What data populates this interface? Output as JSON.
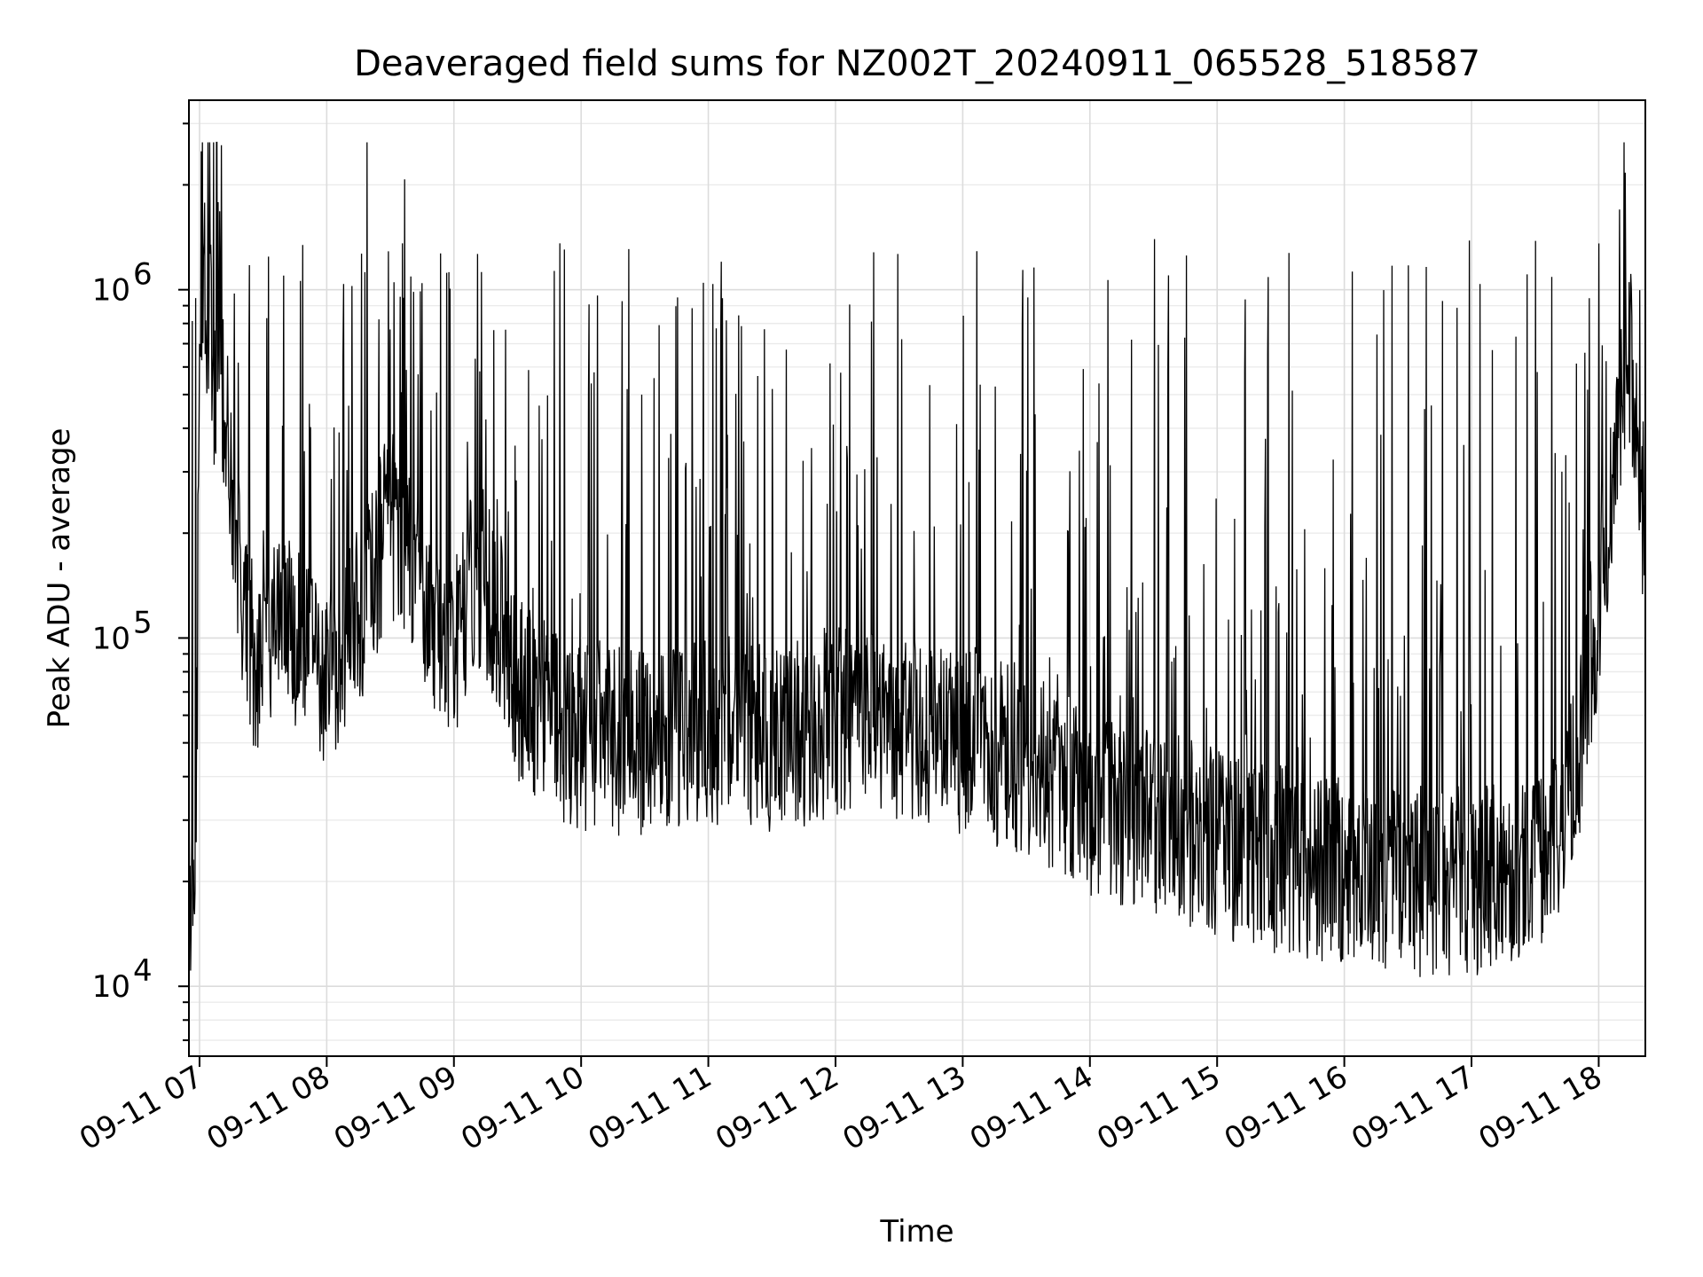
{
  "chart_data": {
    "type": "line",
    "title": "Deaveraged field sums for NZ002T_20240911_065528_518587",
    "xlabel": "Time",
    "ylabel": "Peak ADU - average",
    "yscale": "log",
    "ylim": [
      6300,
      3500000
    ],
    "y_ticks": [
      10000,
      100000,
      1000000
    ],
    "y_tick_labels": [
      {
        "base": "10",
        "exp": "4"
      },
      {
        "base": "10",
        "exp": "5"
      },
      {
        "base": "10",
        "exp": "6"
      }
    ],
    "xlim": [
      "2024-09-11 06:55",
      "2024-09-11 18:22"
    ],
    "x_ticks": [
      "2024-09-11 07:00",
      "2024-09-11 08:00",
      "2024-09-11 09:00",
      "2024-09-11 10:00",
      "2024-09-11 11:00",
      "2024-09-11 12:00",
      "2024-09-11 13:00",
      "2024-09-11 14:00",
      "2024-09-11 15:00",
      "2024-09-11 16:00",
      "2024-09-11 17:00",
      "2024-09-11 18:00"
    ],
    "x_tick_labels": [
      "09-11 07",
      "09-11 08",
      "09-11 09",
      "09-11 10",
      "09-11 11",
      "09-11 12",
      "09-11 13",
      "09-11 14",
      "09-11 15",
      "09-11 16",
      "09-11 17",
      "09-11 18"
    ],
    "grid": true,
    "line_color": "#000000",
    "series": [
      {
        "x": [
          "2024-09-11 06:55",
          "2024-09-11 06:57",
          "2024-09-11 06:58",
          "2024-09-11 07:00",
          "2024-09-11 07:02",
          "2024-09-11 07:04",
          "2024-09-11 07:06",
          "2024-09-11 07:08",
          "2024-09-11 07:10",
          "2024-09-11 07:14",
          "2024-09-11 07:18",
          "2024-09-11 07:22",
          "2024-09-11 07:26",
          "2024-09-11 07:30",
          "2024-09-11 07:40",
          "2024-09-11 07:50",
          "2024-09-11 08:00",
          "2024-09-11 08:10",
          "2024-09-11 08:20",
          "2024-09-11 08:30",
          "2024-09-11 08:40",
          "2024-09-11 08:50",
          "2024-09-11 09:00",
          "2024-09-11 09:10",
          "2024-09-11 09:20",
          "2024-09-11 09:30",
          "2024-09-11 09:45",
          "2024-09-11 10:00",
          "2024-09-11 10:30",
          "2024-09-11 11:00",
          "2024-09-11 11:30",
          "2024-09-11 12:00",
          "2024-09-11 12:30",
          "2024-09-11 13:00",
          "2024-09-11 13:30",
          "2024-09-11 14:00",
          "2024-09-11 14:30",
          "2024-09-11 15:00",
          "2024-09-11 15:30",
          "2024-09-11 16:00",
          "2024-09-11 16:30",
          "2024-09-11 17:00",
          "2024-09-11 17:20",
          "2024-09-11 17:35",
          "2024-09-11 17:45",
          "2024-09-11 17:55",
          "2024-09-11 18:05",
          "2024-09-11 18:15",
          "2024-09-11 18:22"
        ],
        "baseline": [
          17000,
          15000,
          12000,
          700000,
          1300000,
          1000000,
          600000,
          450000,
          500000,
          350000,
          160000,
          100000,
          85000,
          100000,
          120000,
          90000,
          80000,
          95000,
          140000,
          220000,
          160000,
          110000,
          95000,
          160000,
          120000,
          70000,
          58000,
          52000,
          50000,
          55000,
          50000,
          58000,
          55000,
          50000,
          45000,
          34000,
          30000,
          26000,
          23000,
          21000,
          20000,
          20000,
          22000,
          24000,
          30000,
          70000,
          250000,
          700000,
          150000
        ],
        "spike_max": 2650000
      }
    ]
  }
}
